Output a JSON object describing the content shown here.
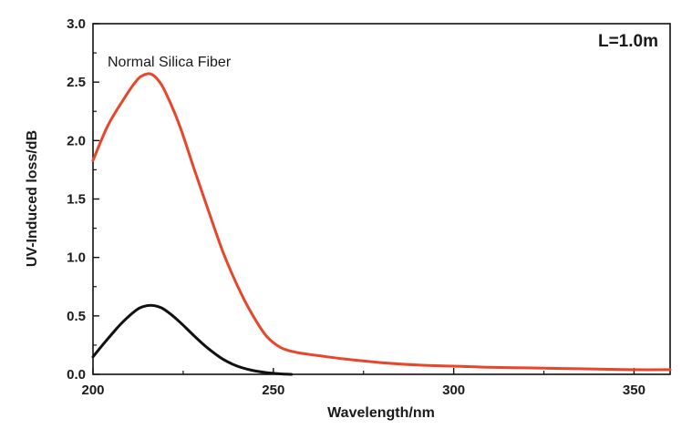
{
  "chart_data": {
    "type": "line",
    "title": "",
    "xlabel": "Wavelength/nm",
    "ylabel": "UV-Induced loss/dB",
    "xlim": [
      200,
      360
    ],
    "ylim": [
      0,
      3.0
    ],
    "x_ticks": [
      "200",
      "250",
      "300",
      "350"
    ],
    "y_ticks": [
      "0.0",
      "0.5",
      "1.0",
      "1.5",
      "2.0",
      "2.5",
      "3.0"
    ],
    "grid": false,
    "legend": "none",
    "annotations": [
      {
        "text": "Normal Silica Fiber"
      },
      {
        "text": "L=1.0m"
      }
    ],
    "series": [
      {
        "color": "#e8462a",
        "x": [
          200,
          204,
          208,
          212,
          214,
          216,
          218,
          220,
          224,
          228,
          232,
          236,
          240,
          244,
          248,
          252,
          256,
          260,
          265,
          270,
          280,
          290,
          300,
          310,
          320,
          330,
          340,
          350,
          360
        ],
        "y": [
          1.83,
          2.12,
          2.33,
          2.51,
          2.56,
          2.57,
          2.52,
          2.42,
          2.13,
          1.76,
          1.4,
          1.05,
          0.76,
          0.52,
          0.33,
          0.23,
          0.19,
          0.17,
          0.15,
          0.13,
          0.1,
          0.08,
          0.07,
          0.06,
          0.055,
          0.05,
          0.045,
          0.04,
          0.04
        ]
      },
      {
        "color": "#111111",
        "x": [
          200,
          204,
          208,
          212,
          214,
          216,
          218,
          220,
          224,
          228,
          232,
          236,
          240,
          244,
          248,
          252,
          255
        ],
        "y": [
          0.15,
          0.3,
          0.44,
          0.55,
          0.58,
          0.59,
          0.58,
          0.55,
          0.45,
          0.33,
          0.22,
          0.13,
          0.07,
          0.035,
          0.015,
          0.004,
          0.0
        ]
      }
    ]
  }
}
